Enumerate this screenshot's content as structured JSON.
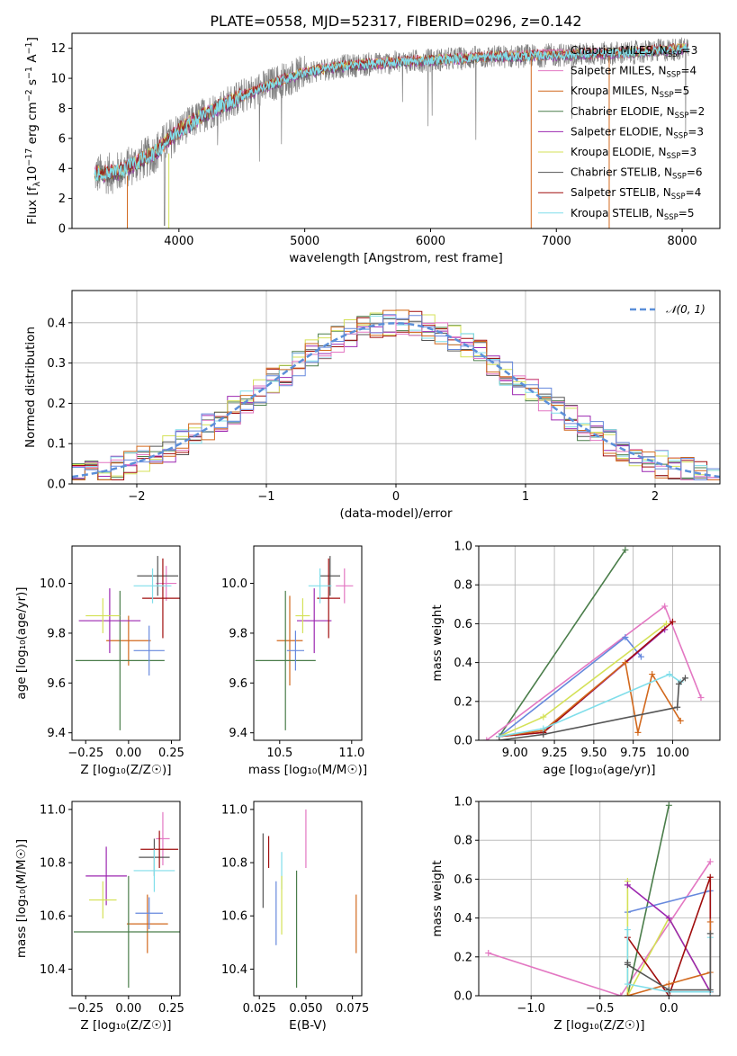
{
  "page_title": "PLATE=0558, MJD=52317, FIBERID=0296, z=0.142",
  "colors": {
    "Chabrier MILES": "#e377c2",
    "Salpeter MILES": "#e377c2",
    "Kroupa MILES": "#d2691e",
    "Chabrier ELODIE": "#4a7d4a",
    "Salpeter ELODIE": "#9c27b0",
    "Kroupa ELODIE": "#d4e157",
    "Chabrier STELIB": "#555555",
    "Salpeter STELIB": "#a00d0d",
    "Kroupa STELIB": "#80deea",
    "spectrum": "#808080",
    "blue_model": "#6688dd",
    "gaussian": "#5b8fd9"
  },
  "chart_data": [
    {
      "id": "spectrum",
      "type": "line",
      "title": "PLATE=0558, MJD=52317, FIBERID=0296, z=0.142",
      "xlabel": "wavelength [Angstrom, rest frame]",
      "ylabel_main": "Flux [f",
      "ylabel_sub": "λ",
      "ylabel_rest": "10",
      "ylabel_exp1": "−17",
      "ylabel_unit": " erg cm",
      "ylabel_exp2": "−2",
      "ylabel_s": " s",
      "ylabel_exp3": "−1",
      "ylabel_A": " A",
      "ylabel_exp4": "−1",
      "ylabel_end": "]",
      "xlim": [
        3150,
        8300
      ],
      "ylim": [
        0,
        13
      ],
      "xticks": [
        4000,
        5000,
        6000,
        7000,
        8000
      ],
      "yticks": [
        0,
        2,
        4,
        6,
        8,
        10,
        12
      ],
      "grid": false,
      "legend_position": "top-right",
      "series": [
        {
          "name": "Chabrier MILES",
          "nssp": 3,
          "color": "#e377c2"
        },
        {
          "name": "Salpeter MILES",
          "nssp": 4,
          "color": "#e377c2"
        },
        {
          "name": "Kroupa MILES",
          "nssp": 5,
          "color": "#d2691e"
        },
        {
          "name": "Chabrier ELODIE",
          "nssp": 2,
          "color": "#4a7d4a"
        },
        {
          "name": "Salpeter ELODIE",
          "nssp": 3,
          "color": "#9c27b0"
        },
        {
          "name": "Kroupa ELODIE",
          "nssp": 3,
          "color": "#d4e157"
        },
        {
          "name": "Chabrier STELIB",
          "nssp": 6,
          "color": "#555555"
        },
        {
          "name": "Salpeter STELIB",
          "nssp": 4,
          "color": "#a00d0d"
        },
        {
          "name": "Kroupa STELIB",
          "nssp": 5,
          "color": "#80deea"
        }
      ],
      "continuum": [
        [
          3330,
          3.6
        ],
        [
          3500,
          3.7
        ],
        [
          3650,
          4.3
        ],
        [
          3800,
          5.0
        ],
        [
          4000,
          6.5
        ],
        [
          4200,
          7.6
        ],
        [
          4500,
          8.8
        ],
        [
          4800,
          9.8
        ],
        [
          5000,
          10.4
        ],
        [
          5300,
          10.8
        ],
        [
          5600,
          11.0
        ],
        [
          6000,
          11.2
        ],
        [
          6400,
          11.4
        ],
        [
          6800,
          11.5
        ],
        [
          7200,
          11.6
        ],
        [
          7600,
          11.7
        ],
        [
          8050,
          12.0
        ]
      ]
    },
    {
      "id": "residuals",
      "type": "step",
      "xlabel": "(data-model)/error",
      "ylabel": "Normed distribution",
      "xlim": [
        -2.5,
        2.5
      ],
      "ylim": [
        0,
        0.48
      ],
      "xticks": [
        -2,
        -1,
        0,
        1,
        2
      ],
      "yticks": [
        0.0,
        0.1,
        0.2,
        0.3,
        0.4
      ],
      "grid": true,
      "legend_position": "top-right",
      "gaussian_label": "𝒩(0, 1)"
    },
    {
      "id": "age_vs_Z",
      "type": "errorbar",
      "xlabel": "Z [log₁₀(Z/Z☉)]",
      "ylabel": "age  [log₁₀(age/yr)]",
      "xlim": [
        -0.33,
        0.3
      ],
      "ylim": [
        9.37,
        10.15
      ],
      "xticks": [
        -0.25,
        0.0,
        0.25
      ],
      "yticks": [
        9.4,
        9.6,
        9.8,
        10.0
      ],
      "grid": false,
      "points": [
        {
          "color": "#e377c2",
          "x": 0.22,
          "y": 10.0,
          "xerr": 0.06,
          "yerr": 0.07
        },
        {
          "color": "#d2691e",
          "x": 0.0,
          "y": 9.77,
          "xerr": 0.13,
          "yerr": 0.1
        },
        {
          "color": "#4a7d4a",
          "x": -0.05,
          "y": 9.69,
          "xerr": 0.26,
          "yerr": 0.28
        },
        {
          "color": "#9c27b0",
          "x": -0.11,
          "y": 9.85,
          "xerr": 0.18,
          "yerr": 0.13
        },
        {
          "color": "#d4e157",
          "x": -0.15,
          "y": 9.87,
          "xerr": 0.1,
          "yerr": 0.07
        },
        {
          "color": "#555555",
          "x": 0.17,
          "y": 10.03,
          "xerr": 0.12,
          "yerr": 0.08
        },
        {
          "color": "#a00d0d",
          "x": 0.2,
          "y": 9.94,
          "xerr": 0.12,
          "yerr": 0.16
        },
        {
          "color": "#80deea",
          "x": 0.14,
          "y": 9.99,
          "xerr": 0.11,
          "yerr": 0.07
        },
        {
          "color": "#6688dd",
          "x": 0.12,
          "y": 9.73,
          "xerr": 0.09,
          "yerr": 0.1
        }
      ]
    },
    {
      "id": "age_vs_mass",
      "type": "errorbar",
      "xlabel": "mass [log₁₀(M/M☉)]",
      "ylabel": "",
      "xlim": [
        10.32,
        11.07
      ],
      "ylim": [
        9.37,
        10.15
      ],
      "xticks": [
        10.5,
        11.0
      ],
      "yticks": [
        9.4,
        9.6,
        9.8,
        10.0
      ],
      "grid": false,
      "points": [
        {
          "color": "#e377c2",
          "x": 10.95,
          "y": 9.99,
          "xerr": 0.06,
          "yerr": 0.07
        },
        {
          "color": "#d2691e",
          "x": 10.57,
          "y": 9.77,
          "xerr": 0.09,
          "yerr": 0.18
        },
        {
          "color": "#4a7d4a",
          "x": 10.54,
          "y": 9.69,
          "xerr": 0.21,
          "yerr": 0.28
        },
        {
          "color": "#9c27b0",
          "x": 10.74,
          "y": 9.85,
          "xerr": 0.12,
          "yerr": 0.13
        },
        {
          "color": "#d4e157",
          "x": 10.66,
          "y": 9.87,
          "xerr": 0.05,
          "yerr": 0.07
        },
        {
          "color": "#555555",
          "x": 10.85,
          "y": 10.03,
          "xerr": 0.07,
          "yerr": 0.08
        },
        {
          "color": "#a00d0d",
          "x": 10.84,
          "y": 9.94,
          "xerr": 0.08,
          "yerr": 0.16
        },
        {
          "color": "#80deea",
          "x": 10.78,
          "y": 9.99,
          "xerr": 0.08,
          "yerr": 0.07
        },
        {
          "color": "#6688dd",
          "x": 10.61,
          "y": 9.73,
          "xerr": 0.06,
          "yerr": 0.08
        }
      ]
    },
    {
      "id": "weight_vs_age",
      "type": "line",
      "xlabel": "age  [log₁₀(age/yr)]",
      "ylabel": "mass weight",
      "xlim": [
        8.77,
        10.3
      ],
      "ylim": [
        0,
        1.0
      ],
      "xticks": [
        9.0,
        9.25,
        9.5,
        9.75,
        10.0
      ],
      "yticks": [
        0.0,
        0.2,
        0.4,
        0.6,
        0.8,
        1.0
      ],
      "grid": true,
      "series": [
        {
          "color": "#4a7d4a",
          "points": [
            [
              8.9,
              0.02
            ],
            [
              9.7,
              0.98
            ]
          ]
        },
        {
          "color": "#e377c2",
          "points": [
            [
              8.82,
              0.0
            ],
            [
              9.95,
              0.69
            ],
            [
              10.18,
              0.22
            ]
          ]
        },
        {
          "color": "#6688dd",
          "points": [
            [
              8.9,
              0.02
            ],
            [
              9.7,
              0.53
            ],
            [
              9.8,
              0.43
            ]
          ]
        },
        {
          "color": "#d4e157",
          "points": [
            [
              8.9,
              0.02
            ],
            [
              9.18,
              0.12
            ],
            [
              9.96,
              0.6
            ]
          ]
        },
        {
          "color": "#9c27b0",
          "points": [
            [
              8.9,
              0.02
            ],
            [
              9.18,
              0.04
            ],
            [
              9.95,
              0.57
            ]
          ]
        },
        {
          "color": "#a00d0d",
          "points": [
            [
              8.9,
              0.02
            ],
            [
              9.18,
              0.04
            ],
            [
              10.0,
              0.61
            ]
          ]
        },
        {
          "color": "#d2691e",
          "points": [
            [
              8.9,
              0.02
            ],
            [
              9.18,
              0.05
            ],
            [
              9.7,
              0.4
            ],
            [
              9.78,
              0.04
            ],
            [
              9.87,
              0.34
            ],
            [
              10.05,
              0.1
            ]
          ]
        },
        {
          "color": "#80deea",
          "points": [
            [
              8.9,
              0.02
            ],
            [
              9.18,
              0.06
            ],
            [
              9.98,
              0.34
            ],
            [
              10.05,
              0.3
            ]
          ]
        },
        {
          "color": "#555555",
          "points": [
            [
              8.9,
              0.0
            ],
            [
              9.18,
              0.03
            ],
            [
              10.03,
              0.17
            ],
            [
              10.04,
              0.29
            ],
            [
              10.08,
              0.32
            ]
          ]
        }
      ]
    },
    {
      "id": "mass_vs_Z",
      "type": "errorbar",
      "xlabel": "Z [log₁₀(Z/Z☉)]",
      "ylabel": "mass [log₁₀(M/M☉)]",
      "xlim": [
        -0.33,
        0.3
      ],
      "ylim": [
        10.3,
        11.03
      ],
      "xticks": [
        -0.25,
        0.0,
        0.25
      ],
      "yticks": [
        10.4,
        10.6,
        10.8,
        11.0
      ],
      "grid": false,
      "points": [
        {
          "color": "#e377c2",
          "x": 0.2,
          "y": 10.89,
          "xerr": 0.04,
          "yerr": 0.1
        },
        {
          "color": "#d2691e",
          "x": 0.11,
          "y": 10.57,
          "xerr": 0.12,
          "yerr": 0.11
        },
        {
          "color": "#4a7d4a",
          "x": 0.0,
          "y": 10.54,
          "xerr": 0.32,
          "yerr": 0.21
        },
        {
          "color": "#9c27b0",
          "x": -0.13,
          "y": 10.75,
          "xerr": 0.12,
          "yerr": 0.11
        },
        {
          "color": "#d4e157",
          "x": -0.15,
          "y": 10.66,
          "xerr": 0.08,
          "yerr": 0.07
        },
        {
          "color": "#555555",
          "x": 0.15,
          "y": 10.82,
          "xerr": 0.09,
          "yerr": 0.07
        },
        {
          "color": "#a00d0d",
          "x": 0.18,
          "y": 10.85,
          "xerr": 0.11,
          "yerr": 0.07
        },
        {
          "color": "#80deea",
          "x": 0.15,
          "y": 10.77,
          "xerr": 0.12,
          "yerr": 0.08
        },
        {
          "color": "#6688dd",
          "x": 0.12,
          "y": 10.61,
          "xerr": 0.08,
          "yerr": 0.06
        }
      ]
    },
    {
      "id": "mass_vs_ebv",
      "type": "errorbar",
      "xlabel": "E(B-V)",
      "ylabel": "",
      "xlim": [
        0.022,
        0.08
      ],
      "ylim": [
        10.3,
        11.03
      ],
      "xticks": [
        0.025,
        0.05,
        0.075
      ],
      "yticks": [
        10.4,
        10.6,
        10.8,
        11.0
      ],
      "grid": false,
      "points": [
        {
          "color": "#555555",
          "x": 0.027,
          "y": 10.77,
          "xerr": 0,
          "yerr": 0.14
        },
        {
          "color": "#a00d0d",
          "x": 0.03,
          "y": 10.84,
          "xerr": 0,
          "yerr": 0.06
        },
        {
          "color": "#6688dd",
          "x": 0.034,
          "y": 10.61,
          "xerr": 0,
          "yerr": 0.12
        },
        {
          "color": "#80deea",
          "x": 0.037,
          "y": 10.77,
          "xerr": 0,
          "yerr": 0.07
        },
        {
          "color": "#d4e157",
          "x": 0.037,
          "y": 10.64,
          "xerr": 0,
          "yerr": 0.11
        },
        {
          "color": "#4a7d4a",
          "x": 0.045,
          "y": 10.55,
          "xerr": 0,
          "yerr": 0.22
        },
        {
          "color": "#e377c2",
          "x": 0.05,
          "y": 10.89,
          "xerr": 0,
          "yerr": 0.11
        },
        {
          "color": "#d2691e",
          "x": 0.077,
          "y": 10.57,
          "xerr": 0,
          "yerr": 0.11
        }
      ]
    },
    {
      "id": "weight_vs_Z",
      "type": "line",
      "xlabel": "Z [log₁₀(Z/Z☉)]",
      "ylabel": "mass weight",
      "xlim": [
        -1.38,
        0.37
      ],
      "ylim": [
        0,
        1.0
      ],
      "xticks": [
        -1.0,
        -0.5,
        0.0
      ],
      "yticks": [
        0.0,
        0.2,
        0.4,
        0.6,
        0.8,
        1.0
      ],
      "grid": true,
      "series": [
        {
          "color": "#e377c2",
          "points": [
            [
              -1.31,
              0.22
            ],
            [
              -0.35,
              0.0
            ],
            [
              0.3,
              0.69
            ]
          ]
        },
        {
          "color": "#4a7d4a",
          "points": [
            [
              -0.3,
              0.0
            ],
            [
              0.0,
              0.98
            ]
          ]
        },
        {
          "color": "#6688dd",
          "points": [
            [
              -0.3,
              0.43
            ],
            [
              0.3,
              0.54
            ],
            [
              0.3,
              0.02
            ]
          ]
        },
        {
          "color": "#d4e157",
          "points": [
            [
              -0.3,
              0.59
            ],
            [
              -0.3,
              0.0
            ],
            [
              0.0,
              0.4
            ],
            [
              0.3,
              0.02
            ]
          ]
        },
        {
          "color": "#9c27b0",
          "points": [
            [
              -0.3,
              0.57
            ],
            [
              0.0,
              0.4
            ],
            [
              0.3,
              0.02
            ]
          ]
        },
        {
          "color": "#a00d0d",
          "points": [
            [
              -0.3,
              0.3
            ],
            [
              0.0,
              0.0
            ],
            [
              0.3,
              0.61
            ],
            [
              0.3,
              0.02
            ]
          ]
        },
        {
          "color": "#d2691e",
          "points": [
            [
              -0.3,
              0.0
            ],
            [
              0.0,
              0.06
            ],
            [
              0.3,
              0.12
            ],
            [
              0.3,
              0.38
            ]
          ]
        },
        {
          "color": "#80deea",
          "points": [
            [
              -0.3,
              0.34
            ],
            [
              -0.3,
              0.06
            ],
            [
              0.0,
              0.02
            ],
            [
              0.3,
              0.02
            ],
            [
              0.3,
              0.3
            ]
          ]
        },
        {
          "color": "#555555",
          "points": [
            [
              -0.3,
              0.17
            ],
            [
              -0.3,
              0.16
            ],
            [
              0.0,
              0.03
            ],
            [
              0.3,
              0.03
            ],
            [
              0.3,
              0.32
            ]
          ]
        }
      ]
    }
  ]
}
